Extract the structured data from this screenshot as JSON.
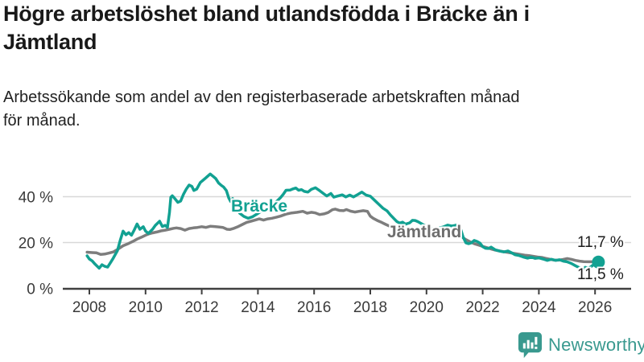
{
  "header": {
    "title": "Högre arbetslöshet bland utlandsfödda i Bräcke än i\nJämtland",
    "subtitle": "Arbetssökande som andel av den registerbaserade arbetskraften månad\nför månad."
  },
  "chart_data": {
    "type": "line",
    "title": "Högre arbetslöshet bland utlandsfödda i Bräcke än i Jämtland",
    "subtitle": "Arbetssökande som andel av den registerbaserade arbetskraften månad för månad.",
    "grid": "horizontal",
    "x_axis": {
      "ticks": [
        2008,
        2010,
        2012,
        2014,
        2016,
        2018,
        2020,
        2022,
        2024,
        2026
      ],
      "labels": [
        "2008",
        "2010",
        "2012",
        "2014",
        "2016",
        "2018",
        "2020",
        "2022",
        "2024",
        "2026"
      ],
      "range": [
        2007.9,
        2026.3
      ]
    },
    "y_axis": {
      "ticks": [
        0,
        20,
        40
      ],
      "labels": [
        "0 %",
        "20 %",
        "40 %"
      ],
      "range": [
        0,
        52
      ]
    },
    "axis_color": "#404040",
    "grid_color": "#d8d8d8",
    "tick_label_color": "#3a3a3a",
    "series": [
      {
        "name": "Jämtland",
        "color": "#7d7d7d",
        "label_color": "#6e6e6e",
        "end_label": "11,7 %",
        "end_value": 11.7,
        "end_dot": false,
        "points": [
          [
            2007.92,
            15.8
          ],
          [
            2008.1,
            15.6
          ],
          [
            2008.25,
            15.5
          ],
          [
            2008.4,
            14.8
          ],
          [
            2008.55,
            15.0
          ],
          [
            2008.7,
            15.4
          ],
          [
            2008.85,
            15.9
          ],
          [
            2009.0,
            17.0
          ],
          [
            2009.2,
            18.6
          ],
          [
            2009.4,
            19.6
          ],
          [
            2009.55,
            20.5
          ],
          [
            2009.7,
            21.5
          ],
          [
            2009.85,
            22.3
          ],
          [
            2010.0,
            23.2
          ],
          [
            2010.1,
            23.7
          ],
          [
            2010.25,
            24.2
          ],
          [
            2010.4,
            24.6
          ],
          [
            2010.55,
            25.1
          ],
          [
            2010.7,
            25.4
          ],
          [
            2010.85,
            25.8
          ],
          [
            2011.0,
            26.2
          ],
          [
            2011.1,
            26.4
          ],
          [
            2011.25,
            26.1
          ],
          [
            2011.4,
            25.4
          ],
          [
            2011.55,
            26.1
          ],
          [
            2011.7,
            26.4
          ],
          [
            2011.85,
            26.6
          ],
          [
            2012.0,
            26.9
          ],
          [
            2012.15,
            26.6
          ],
          [
            2012.3,
            27.1
          ],
          [
            2012.45,
            27.0
          ],
          [
            2012.6,
            26.8
          ],
          [
            2012.75,
            26.6
          ],
          [
            2012.9,
            25.8
          ],
          [
            2013.0,
            25.7
          ],
          [
            2013.15,
            26.2
          ],
          [
            2013.3,
            27.0
          ],
          [
            2013.45,
            27.9
          ],
          [
            2013.6,
            28.8
          ],
          [
            2013.75,
            29.3
          ],
          [
            2013.9,
            29.8
          ],
          [
            2014.05,
            30.3
          ],
          [
            2014.2,
            29.8
          ],
          [
            2014.35,
            30.3
          ],
          [
            2014.5,
            30.6
          ],
          [
            2014.65,
            31.0
          ],
          [
            2014.8,
            31.5
          ],
          [
            2015.0,
            32.4
          ],
          [
            2015.2,
            32.9
          ],
          [
            2015.4,
            33.2
          ],
          [
            2015.6,
            33.6
          ],
          [
            2015.75,
            32.8
          ],
          [
            2015.9,
            33.2
          ],
          [
            2016.05,
            32.9
          ],
          [
            2016.2,
            32.2
          ],
          [
            2016.35,
            32.5
          ],
          [
            2016.5,
            33.1
          ],
          [
            2016.65,
            34.3
          ],
          [
            2016.75,
            34.6
          ],
          [
            2016.9,
            34.0
          ],
          [
            2017.05,
            33.9
          ],
          [
            2017.15,
            34.4
          ],
          [
            2017.3,
            33.7
          ],
          [
            2017.45,
            33.3
          ],
          [
            2017.6,
            33.6
          ],
          [
            2017.75,
            33.9
          ],
          [
            2017.9,
            33.6
          ],
          [
            2018.0,
            31.5
          ],
          [
            2018.1,
            30.6
          ],
          [
            2018.25,
            29.6
          ],
          [
            2018.4,
            28.8
          ],
          [
            2018.55,
            27.9
          ],
          [
            2018.7,
            27.1
          ],
          [
            2018.9,
            26.3
          ],
          [
            2019.1,
            25.6
          ],
          [
            2019.3,
            25.0
          ],
          [
            2019.5,
            24.6
          ],
          [
            2019.7,
            24.2
          ],
          [
            2019.9,
            23.9
          ],
          [
            2020.1,
            23.6
          ],
          [
            2020.3,
            23.3
          ],
          [
            2020.5,
            23.1
          ],
          [
            2020.7,
            22.9
          ],
          [
            2020.9,
            22.8
          ],
          [
            2021.1,
            23.0
          ],
          [
            2021.25,
            22.5
          ],
          [
            2021.4,
            21.3
          ],
          [
            2021.55,
            20.3
          ],
          [
            2021.7,
            19.5
          ],
          [
            2021.85,
            18.9
          ],
          [
            2022.0,
            18.3
          ],
          [
            2022.15,
            17.8
          ],
          [
            2022.3,
            17.2
          ],
          [
            2022.45,
            16.7
          ],
          [
            2022.6,
            16.3
          ],
          [
            2022.75,
            16.0
          ],
          [
            2022.9,
            15.7
          ],
          [
            2023.05,
            15.4
          ],
          [
            2023.2,
            15.1
          ],
          [
            2023.35,
            14.8
          ],
          [
            2023.5,
            14.5
          ],
          [
            2023.65,
            14.3
          ],
          [
            2023.8,
            14.0
          ],
          [
            2023.95,
            13.7
          ],
          [
            2024.1,
            13.5
          ],
          [
            2024.25,
            13.1
          ],
          [
            2024.4,
            12.7
          ],
          [
            2024.55,
            12.3
          ],
          [
            2024.7,
            12.3
          ],
          [
            2024.85,
            12.6
          ],
          [
            2025.0,
            13.0
          ],
          [
            2025.15,
            12.7
          ],
          [
            2025.3,
            12.2
          ],
          [
            2025.45,
            11.9
          ],
          [
            2025.6,
            11.7
          ],
          [
            2025.75,
            11.6
          ],
          [
            2025.9,
            11.6
          ],
          [
            2026.0,
            11.65
          ],
          [
            2026.1,
            11.7
          ]
        ]
      },
      {
        "name": "Bräcke",
        "color": "#12a192",
        "label_color": "#12a192",
        "end_label": "11,5 %",
        "end_value": 11.5,
        "end_dot": true,
        "points": [
          [
            2007.92,
            14.2
          ],
          [
            2008.0,
            12.8
          ],
          [
            2008.1,
            12.0
          ],
          [
            2008.2,
            10.6
          ],
          [
            2008.35,
            8.8
          ],
          [
            2008.45,
            10.3
          ],
          [
            2008.55,
            9.6
          ],
          [
            2008.65,
            9.3
          ],
          [
            2008.75,
            11.2
          ],
          [
            2008.85,
            13.2
          ],
          [
            2009.0,
            16.5
          ],
          [
            2009.1,
            21.0
          ],
          [
            2009.2,
            25.0
          ],
          [
            2009.3,
            23.4
          ],
          [
            2009.4,
            24.3
          ],
          [
            2009.5,
            23.2
          ],
          [
            2009.6,
            25.5
          ],
          [
            2009.7,
            28.1
          ],
          [
            2009.8,
            25.8
          ],
          [
            2009.92,
            26.9
          ],
          [
            2010.0,
            25.0
          ],
          [
            2010.1,
            24.0
          ],
          [
            2010.25,
            25.8
          ],
          [
            2010.35,
            27.5
          ],
          [
            2010.5,
            29.3
          ],
          [
            2010.6,
            27.0
          ],
          [
            2010.7,
            27.5
          ],
          [
            2010.78,
            26.6
          ],
          [
            2010.85,
            33.0
          ],
          [
            2010.9,
            39.8
          ],
          [
            2010.95,
            40.4
          ],
          [
            2011.0,
            39.8
          ],
          [
            2011.08,
            38.6
          ],
          [
            2011.15,
            37.5
          ],
          [
            2011.25,
            38.1
          ],
          [
            2011.35,
            41.0
          ],
          [
            2011.45,
            43.3
          ],
          [
            2011.55,
            45.1
          ],
          [
            2011.65,
            44.5
          ],
          [
            2011.72,
            42.7
          ],
          [
            2011.82,
            43.3
          ],
          [
            2011.95,
            46.2
          ],
          [
            2012.05,
            47.2
          ],
          [
            2012.18,
            48.6
          ],
          [
            2012.3,
            49.9
          ],
          [
            2012.4,
            48.9
          ],
          [
            2012.5,
            47.9
          ],
          [
            2012.6,
            46.0
          ],
          [
            2012.7,
            44.9
          ],
          [
            2012.78,
            44.2
          ],
          [
            2012.88,
            42.6
          ],
          [
            2012.96,
            39.5
          ],
          [
            2013.03,
            37.9
          ],
          [
            2013.1,
            39.2
          ],
          [
            2013.2,
            36.5
          ],
          [
            2013.35,
            32.8
          ],
          [
            2013.5,
            31.4
          ],
          [
            2013.65,
            30.6
          ],
          [
            2013.8,
            31.2
          ],
          [
            2013.95,
            32.3
          ],
          [
            2014.1,
            33.5
          ],
          [
            2014.25,
            34.6
          ],
          [
            2014.4,
            35.6
          ],
          [
            2014.55,
            36.8
          ],
          [
            2014.7,
            38.3
          ],
          [
            2014.8,
            39.5
          ],
          [
            2014.9,
            41.0
          ],
          [
            2015.0,
            42.8
          ],
          [
            2015.15,
            42.9
          ],
          [
            2015.25,
            43.4
          ],
          [
            2015.35,
            43.8
          ],
          [
            2015.45,
            42.8
          ],
          [
            2015.55,
            43.1
          ],
          [
            2015.65,
            42.3
          ],
          [
            2015.78,
            42.0
          ],
          [
            2015.9,
            43.2
          ],
          [
            2016.05,
            43.9
          ],
          [
            2016.2,
            42.6
          ],
          [
            2016.33,
            41.4
          ],
          [
            2016.45,
            40.3
          ],
          [
            2016.6,
            41.4
          ],
          [
            2016.7,
            39.8
          ],
          [
            2016.85,
            40.3
          ],
          [
            2017.0,
            40.8
          ],
          [
            2017.13,
            39.9
          ],
          [
            2017.27,
            40.7
          ],
          [
            2017.4,
            39.9
          ],
          [
            2017.55,
            40.9
          ],
          [
            2017.7,
            42.0
          ],
          [
            2017.85,
            40.7
          ],
          [
            2018.0,
            40.2
          ],
          [
            2018.15,
            38.5
          ],
          [
            2018.3,
            36.7
          ],
          [
            2018.45,
            35.0
          ],
          [
            2018.6,
            33.8
          ],
          [
            2018.72,
            32.0
          ],
          [
            2018.85,
            30.3
          ],
          [
            2018.95,
            29.1
          ],
          [
            2019.05,
            28.5
          ],
          [
            2019.15,
            28.9
          ],
          [
            2019.25,
            28.0
          ],
          [
            2019.4,
            28.6
          ],
          [
            2019.5,
            29.7
          ],
          [
            2019.6,
            29.6
          ],
          [
            2019.7,
            29.1
          ],
          [
            2019.8,
            28.4
          ],
          [
            2019.9,
            27.7
          ],
          [
            2020.0,
            27.2
          ],
          [
            2020.15,
            26.4
          ],
          [
            2020.3,
            25.9
          ],
          [
            2020.45,
            26.3
          ],
          [
            2020.6,
            26.8
          ],
          [
            2020.75,
            27.6
          ],
          [
            2020.9,
            27.2
          ],
          [
            2021.0,
            27.4
          ],
          [
            2021.1,
            27.8
          ],
          [
            2021.2,
            26.5
          ],
          [
            2021.3,
            22.5
          ],
          [
            2021.4,
            19.9
          ],
          [
            2021.5,
            19.5
          ],
          [
            2021.6,
            19.9
          ],
          [
            2021.7,
            20.9
          ],
          [
            2021.8,
            20.5
          ],
          [
            2021.9,
            19.8
          ],
          [
            2022.0,
            18.2
          ],
          [
            2022.1,
            17.5
          ],
          [
            2022.2,
            17.4
          ],
          [
            2022.3,
            18.0
          ],
          [
            2022.45,
            16.8
          ],
          [
            2022.6,
            16.3
          ],
          [
            2022.75,
            15.9
          ],
          [
            2022.9,
            16.3
          ],
          [
            2023.05,
            15.4
          ],
          [
            2023.15,
            14.7
          ],
          [
            2023.3,
            14.3
          ],
          [
            2023.45,
            13.7
          ],
          [
            2023.6,
            13.2
          ],
          [
            2023.73,
            13.6
          ],
          [
            2023.87,
            13.1
          ],
          [
            2024.0,
            13.3
          ],
          [
            2024.15,
            12.8
          ],
          [
            2024.3,
            12.2
          ],
          [
            2024.45,
            12.7
          ],
          [
            2024.6,
            12.2
          ],
          [
            2024.73,
            12.5
          ],
          [
            2024.87,
            11.9
          ],
          [
            2025.0,
            11.6
          ],
          [
            2025.15,
            10.9
          ],
          [
            2025.3,
            9.9
          ],
          [
            2025.45,
            9.0
          ],
          [
            2025.55,
            8.5
          ],
          [
            2025.65,
            9.2
          ],
          [
            2025.78,
            8.8
          ],
          [
            2025.9,
            9.9
          ],
          [
            2026.0,
            10.8
          ],
          [
            2026.12,
            11.5
          ]
        ]
      }
    ]
  },
  "footer": {
    "brand": "Newsworthy",
    "brand_color": "#39998f"
  }
}
